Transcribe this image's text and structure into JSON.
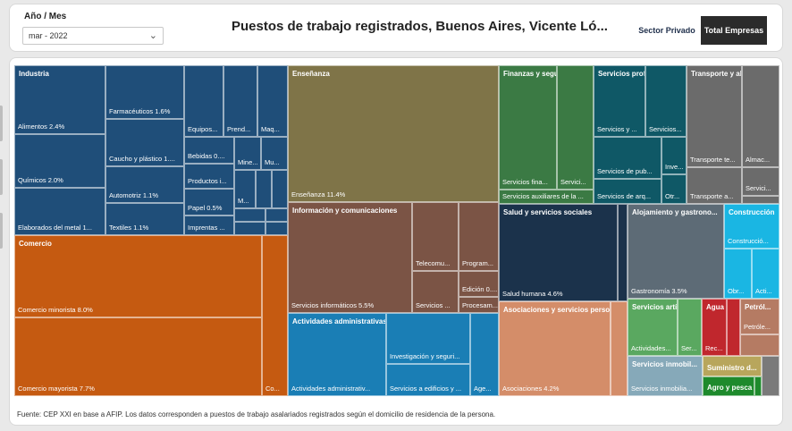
{
  "header": {
    "filter_label": "Año / Mes",
    "filter_value": "mar - 2022",
    "title": "Puestos de trabajo registrados, Buenos Aires, Vicente Ló...",
    "toggle_privado": "Sector Privado",
    "toggle_total": "Total Empresas"
  },
  "footnote": "Fuente: CEP XXI en base a AFIP. Los datos corresponden a puestos de trabajo asalariados registrados según el domicilio de residencia de la persona.",
  "colors": {
    "industria": "#1f4e79",
    "comercio": "#c55a11",
    "ensenanza": "#7f7448",
    "informacion": "#7b5445",
    "actividades_admin": "#1a7eb5",
    "finanzas": "#3b7a44",
    "serv_profesionales": "#0f5866",
    "transporte": "#6b6b6b",
    "salud": "#1b324b",
    "asociaciones": "#d48d69",
    "alojamiento": "#5d6b76",
    "construccion": "#1ab6e3",
    "serv_artisticos": "#5aa860",
    "agua": "#c0272d",
    "petroleo": "#b57b63",
    "serv_inmobiliarios": "#86a9b9",
    "suministro": "#b8a65c",
    "agro": "#1e8a2c",
    "otros": "#7a7a7a"
  },
  "treemap": {
    "groups": {
      "industria": "Industria",
      "comercio": "Comercio",
      "ensenanza": "Enseñanza",
      "informacion": "Información y comunicaciones",
      "actividades_admin": "Actividades administrativas y servicios de apoyo",
      "finanzas": "Finanzas y seguros",
      "serv_profesionales": "Servicios profesionales...",
      "transporte": "Transporte y almacena...",
      "salud": "Salud y servicios sociales",
      "asociaciones": "Asociaciones y servicios personales",
      "alojamiento": "Alojamiento y gastrono...",
      "construccion": "Construcción",
      "serv_artisticos": "Servicios artístic...",
      "agua": "Agua y ...",
      "petroleo": "Petról...",
      "serv_inmobiliarios": "Servicios inmobil...",
      "suministro": "Suministro d...",
      "agro": "Agro y pesca"
    },
    "labels": {
      "alimentos": "Alimentos 2.4%",
      "quimicos": "Químicos 2.0%",
      "elaborados_metal": "Elaborados del metal 1...",
      "farmaceuticos": "Farmacéuticos 1.6%",
      "caucho": "Caucho y plástico 1....",
      "automotriz": "Automotriz 1.1%",
      "textiles": "Textiles 1.1%",
      "equipos": "Equipos...",
      "prendas": "Prend...",
      "maquinaria": "Maq...",
      "bebidas": "Bebidas 0....",
      "minerales": "Mine...",
      "muebles": "Mu...",
      "productos": "Productos i...",
      "papel": "Papel 0.5%",
      "metales": "M...",
      "imprentas": "Imprentas ...",
      "comercio_minorista": "Comercio minorista 8.0%",
      "comercio_mayorista": "Comercio mayorista 7.7%",
      "comercio_otro": "Co...",
      "ensenanza": "Enseñanza 11.4%",
      "serv_informaticos": "Servicios informáticos 5.5%",
      "telecom": "Telecomu...",
      "programacion": "Program...",
      "servicios_info": "Servicios ...",
      "edicion": "Edición 0....",
      "procesamiento": "Procesam...",
      "actividades_admin": "Actividades administrativ...",
      "investigacion": "Investigación y seguri...",
      "agencias": "Age...",
      "servicios_edificios": "Servicios a edificios y ...",
      "serv_financieros": "Servicios fina...",
      "serv_fin_2": "Servici...",
      "serv_auxiliares": "Servicios auxiliares de la ...",
      "serv_prof_1": "Servicios y ...",
      "serv_prof_2": "Servicios...",
      "serv_publicidad": "Servicios de pub...",
      "investigacion_prof": "Inve...",
      "serv_arquitectura": "Servicios de arq...",
      "otros_prof": "Otr...",
      "transporte_terrestre": "Transporte te...",
      "almacenamiento": "Almac...",
      "transporte_aereo": "Transporte a...",
      "servicios_transp": "Servici...",
      "salud_humana": "Salud humana 4.6%",
      "asociaciones": "Asociaciones 4.2%",
      "gastronomia": "Gastronomía 3.5%",
      "construccion_1": "Construcció...",
      "obras": "Obr...",
      "actividades_const": "Acti...",
      "actividades_art": "Actividades...",
      "servicios_art": "Ser...",
      "recoleccion": "Rec...",
      "petroleo_sub": "Petróle...",
      "serv_inmob_sub": "Servicios inmobilia..."
    }
  }
}
